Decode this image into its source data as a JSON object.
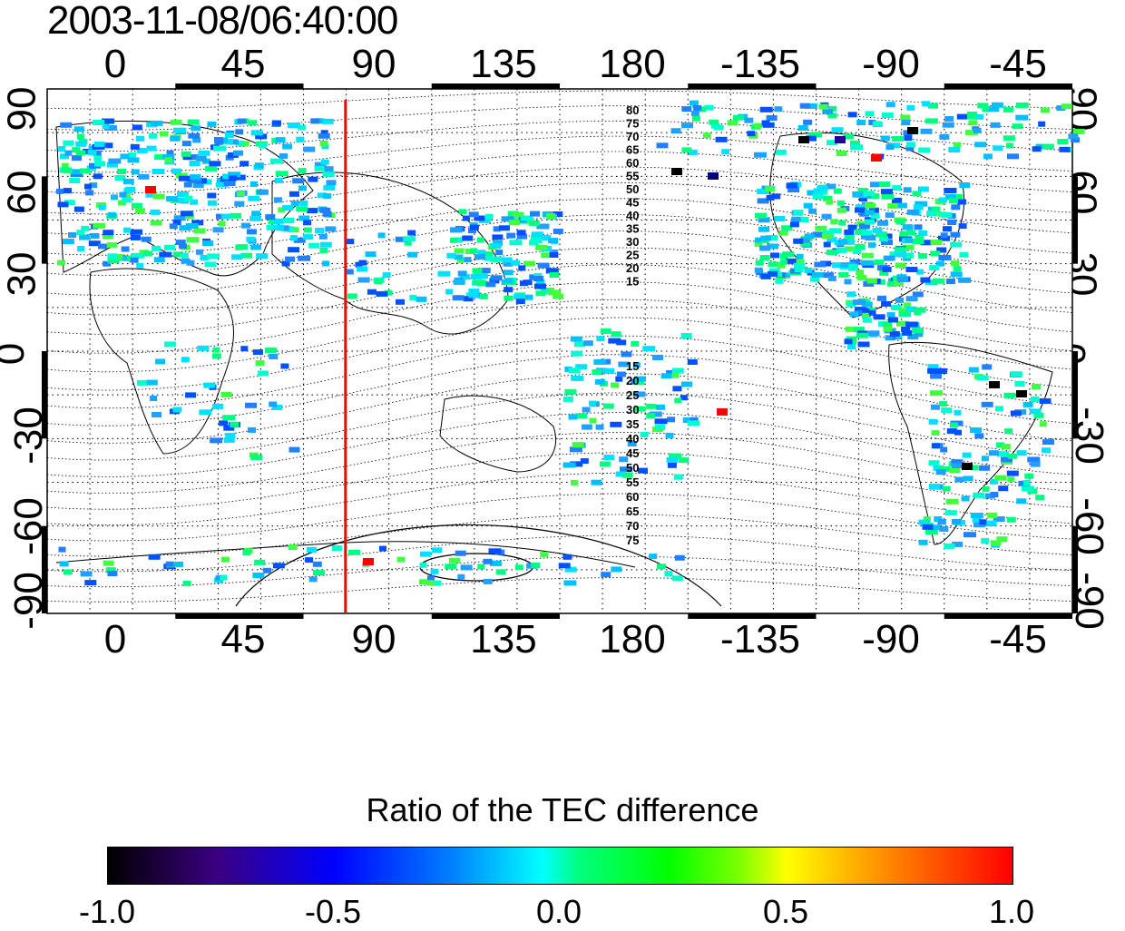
{
  "timestamp": "2003-11-08/06:40:00",
  "x_ticks": [
    "0",
    "45",
    "90",
    "135",
    "180",
    "-135",
    "-90",
    "-45"
  ],
  "y_ticks": [
    "90",
    "60",
    "30",
    "0",
    "-30",
    "-60",
    "-90"
  ],
  "contour_labels_north": [
    "80",
    "75",
    "70",
    "65",
    "60",
    "55",
    "50",
    "45",
    "40",
    "35",
    "30",
    "25",
    "20",
    "15"
  ],
  "contour_labels_south": [
    "15",
    "20",
    "25",
    "30",
    "35",
    "40",
    "45",
    "50",
    "55",
    "60",
    "65",
    "70",
    "75"
  ],
  "terminator_lon": 81,
  "colorbar": {
    "title": "Ratio of the TEC difference",
    "labels": [
      "-1.0",
      "-0.5",
      "0.0",
      "0.5",
      "1.0"
    ],
    "range": [
      -1.0,
      1.0
    ]
  },
  "colors": {
    "terminator": "#ff0000",
    "grid": "#000000"
  }
}
